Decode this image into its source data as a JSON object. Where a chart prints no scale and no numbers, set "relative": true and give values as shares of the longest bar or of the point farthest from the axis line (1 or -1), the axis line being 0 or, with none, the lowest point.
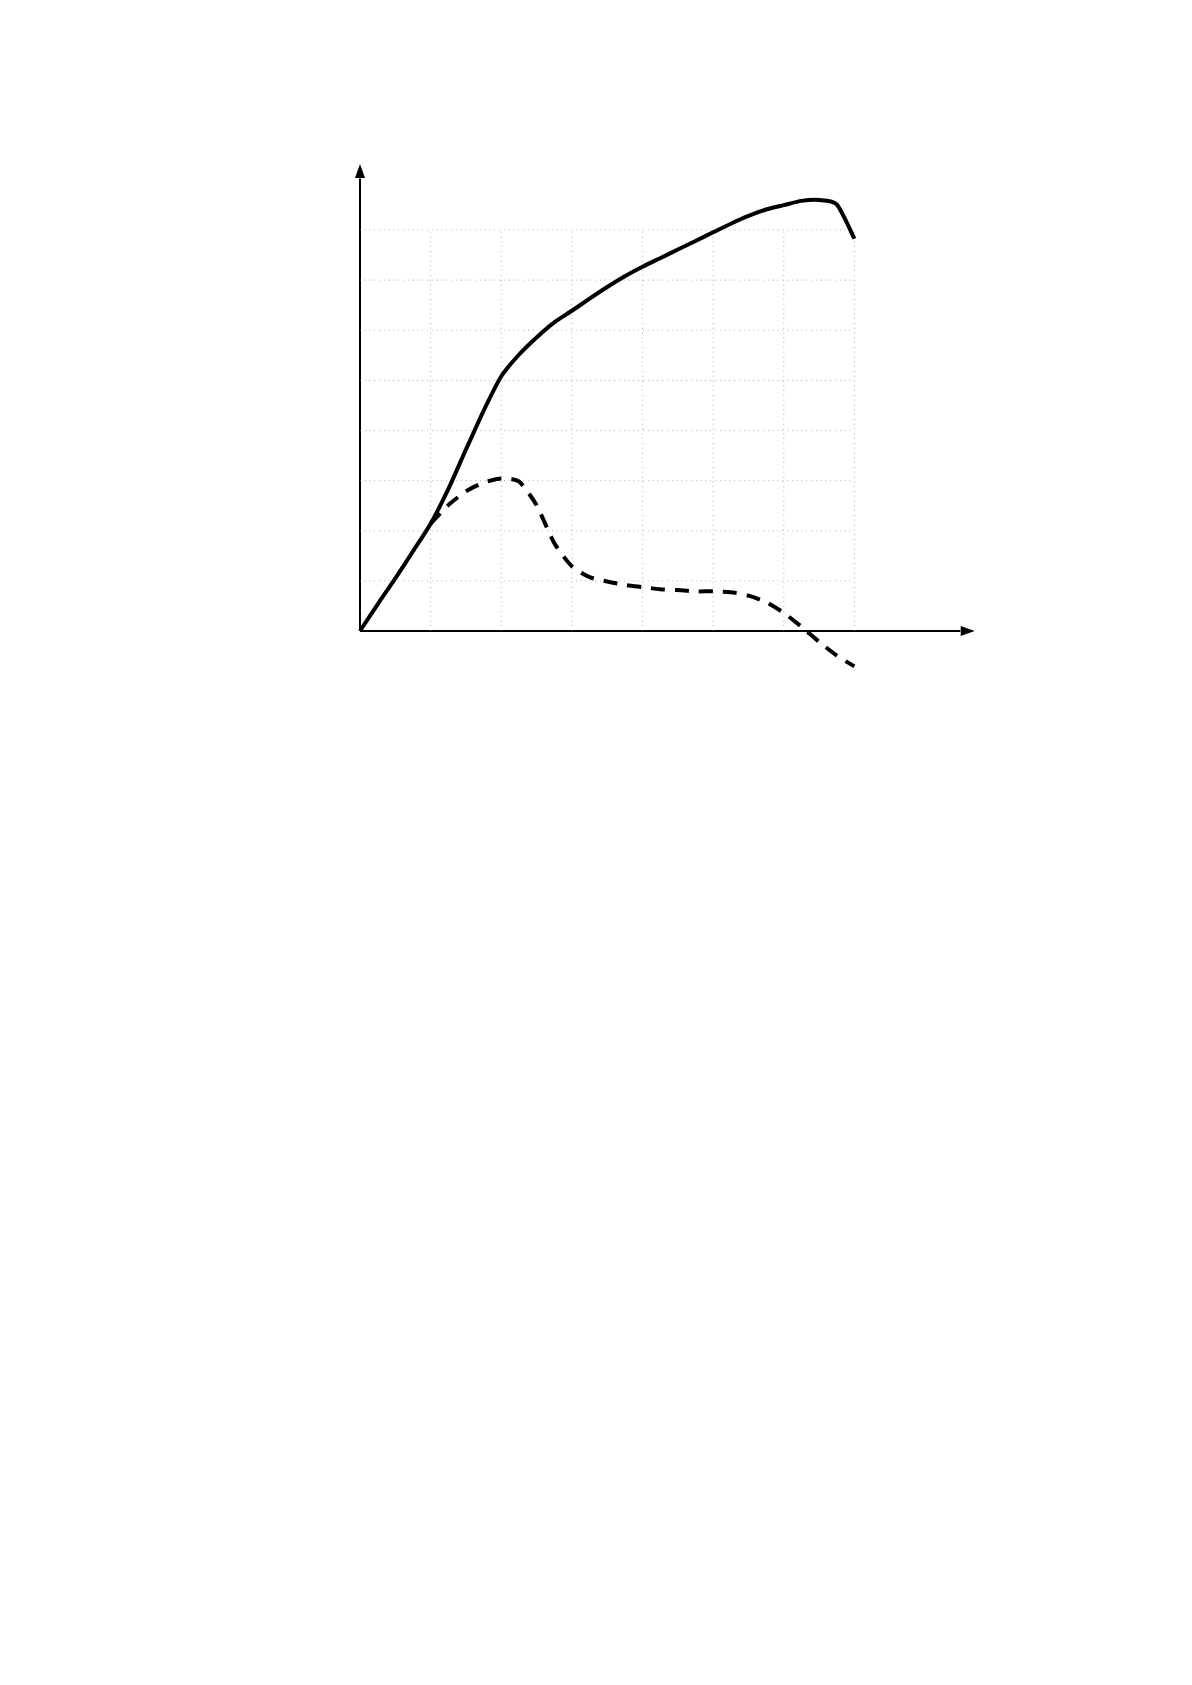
{
  "chart_data": {
    "type": "line",
    "relative": true,
    "grid": true,
    "categories": [
      null,
      null,
      null,
      null,
      null,
      null,
      null,
      null,
      null,
      null,
      null,
      null,
      null,
      null,
      null,
      null,
      null,
      null,
      null,
      null,
      null,
      null,
      null,
      null,
      null,
      null,
      null,
      null,
      null
    ],
    "series": [
      {
        "color": "#000000",
        "line_style": "solid",
        "values": [
          0,
          0.062,
          0.122,
          0.185,
          0.249,
          0.329,
          0.421,
          0.511,
          0.591,
          0.641,
          0.681,
          0.716,
          0.743,
          0.771,
          0.798,
          0.823,
          0.845,
          0.865,
          0.885,
          0.905,
          0.925,
          0.945,
          0.963,
          0.978,
          0.988,
          0.998,
          1.0,
          0.99,
          0.91
        ]
      },
      {
        "color": "#000000",
        "line_style": "dashed",
        "values": [
          null,
          null,
          null,
          null,
          0.249,
          0.292,
          0.324,
          0.344,
          0.354,
          0.347,
          0.292,
          0.204,
          0.15,
          0.125,
          0.115,
          0.107,
          0.102,
          0.097,
          0.095,
          0.092,
          0.092,
          0.09,
          0.082,
          0.067,
          0.042,
          0.01,
          -0.025,
          -0.057,
          -0.082
        ]
      }
    ]
  }
}
